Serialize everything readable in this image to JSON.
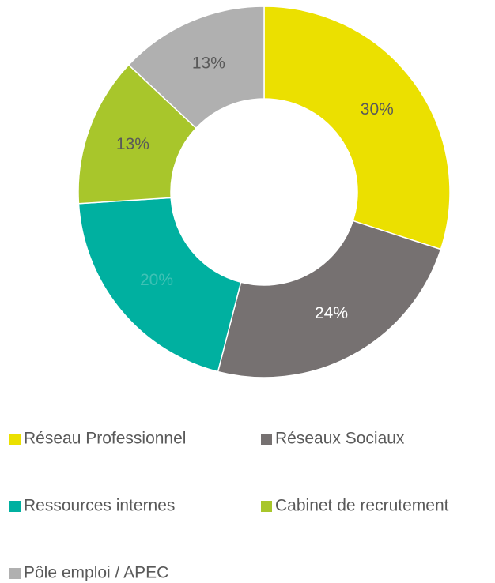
{
  "chart_data": {
    "type": "donut",
    "categories": [
      "Réseau Professionnel",
      "Réseaux Sociaux",
      "Ressources internes",
      "Cabinet de recrutement",
      "Pôle emploi / APEC"
    ],
    "values": [
      30,
      24,
      20,
      13,
      13
    ],
    "value_labels": [
      "30%",
      "24%",
      "20%",
      "13%",
      "13%"
    ],
    "colors": [
      "#ebe000",
      "#767171",
      "#00b0a0",
      "#a8c62b",
      "#b0b0b0"
    ],
    "legend": "bottom"
  }
}
